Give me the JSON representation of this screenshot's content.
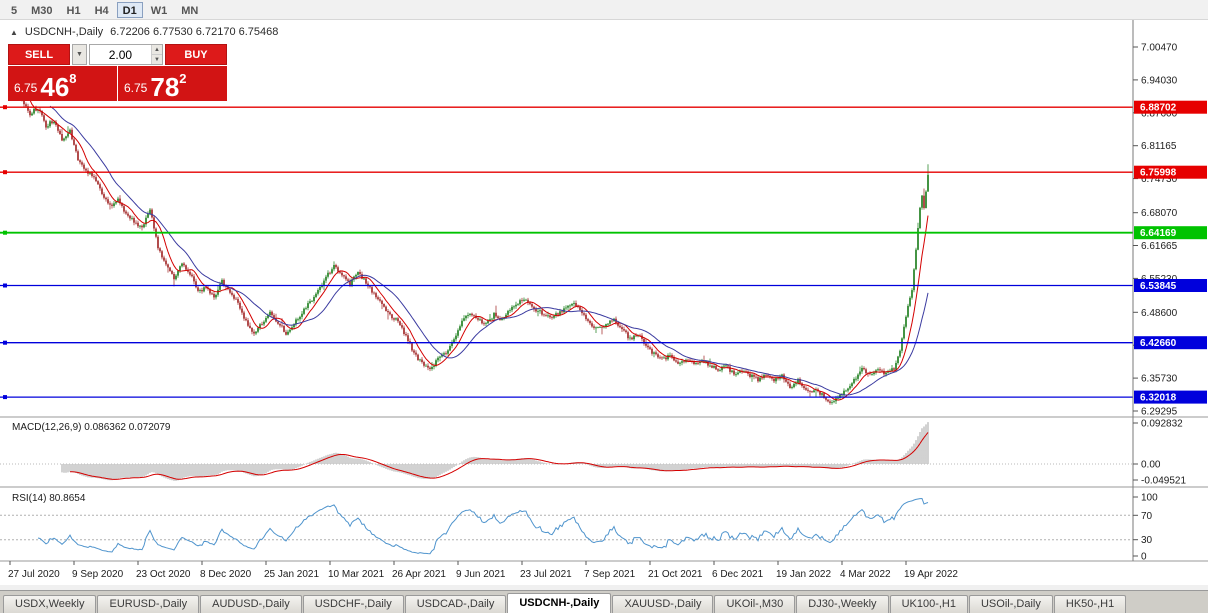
{
  "toolbar": {
    "buttons": [
      "5",
      "M30",
      "H1",
      "H4",
      "D1",
      "W1",
      "MN"
    ],
    "active": "D1"
  },
  "header": {
    "symbol": "USDCNH-,Daily",
    "ohlc": "6.72206 6.77530 6.72170 6.75468",
    "collapse_icon": "▲"
  },
  "trade_panel": {
    "sell_label": "SELL",
    "buy_label": "BUY",
    "volume": "2.00",
    "bid_small": "6.75",
    "bid_big": "46",
    "bid_sup": "8",
    "ask_small": "6.75",
    "ask_big": "78",
    "ask_sup": "2",
    "dropdown_icon": "▼",
    "spin_up_icon": "▲",
    "spin_down_icon": "▼"
  },
  "indicators": {
    "macd": {
      "name": "MACD",
      "params": "12,26,9",
      "full_label": "MACD(12,26,9) 0.086362 0.072079",
      "value_main": "0.086362",
      "value_signal": "0.072079",
      "y_ticks": [
        {
          "v": 0.092832,
          "label": "0.092832"
        },
        {
          "v": 0,
          "label": "0.00"
        },
        {
          "v": -0.049521,
          "label": "-0.049521"
        }
      ]
    },
    "rsi": {
      "name": "RSI",
      "params": "14",
      "full_label": "RSI(14) 80.8654",
      "value": "80.8654",
      "y_ticks": [
        {
          "v": 100,
          "label": "100"
        },
        {
          "v": 70,
          "label": "70"
        },
        {
          "v": 30,
          "label": "30"
        },
        {
          "v": 0,
          "label": "0"
        }
      ],
      "levels": [
        70,
        30
      ]
    }
  },
  "colors": {
    "up": "#167a16",
    "down": "#9e1f1f",
    "ma_fast": "#d40000",
    "ma_slow": "#3b3ba0",
    "macd_hist": "#c6c6c6",
    "macd_signal": "#d40000",
    "rsi": "#4f94cd",
    "level_red": "#e60000",
    "level_green": "#00c300",
    "level_blue": "#0000dc"
  },
  "chart_data": {
    "type": "candlestick",
    "symbol": "USDCNH-",
    "timeframe": "Daily",
    "last_candle": {
      "o": 6.72206,
      "h": 6.7753,
      "l": 6.7217,
      "c": 6.75468
    },
    "candle_count": 460,
    "y_range": {
      "min": 6.2871,
      "max": 7.0184
    },
    "y_ticks": [
      "7.00470",
      "6.94030",
      "6.87600",
      "6.81165",
      "6.74730",
      "6.68070",
      "6.61665",
      "6.55230",
      "6.48600",
      "6.42165",
      "6.35730",
      "6.29295"
    ],
    "x_labels": [
      {
        "day": 0,
        "text": "27 Jul 2020"
      },
      {
        "day": 32,
        "text": "9 Sep 2020"
      },
      {
        "day": 64,
        "text": "23 Oct 2020"
      },
      {
        "day": 96,
        "text": "8 Dec 2020"
      },
      {
        "day": 128,
        "text": "25 Jan 2021"
      },
      {
        "day": 160,
        "text": "10 Mar 2021"
      },
      {
        "day": 192,
        "text": "26 Apr 2021"
      },
      {
        "day": 224,
        "text": "9 Jun 2021"
      },
      {
        "day": 256,
        "text": "23 Jul 2021"
      },
      {
        "day": 288,
        "text": "7 Sep 2021"
      },
      {
        "day": 320,
        "text": "21 Oct 2021"
      },
      {
        "day": 352,
        "text": "6 Dec 2021"
      },
      {
        "day": 384,
        "text": "19 Jan 2022"
      },
      {
        "day": 416,
        "text": "4 Mar 2022"
      },
      {
        "day": 448,
        "text": "19 Apr 2022"
      }
    ],
    "levels": [
      {
        "price": 6.88702,
        "label": "6.88702",
        "color": "#e60000",
        "width": 1.3
      },
      {
        "price": 6.75998,
        "label": "6.75998",
        "color": "#e60000",
        "width": 1.3
      },
      {
        "price": 6.64169,
        "label": "6.64169",
        "color": "#00c300",
        "width": 1.8
      },
      {
        "price": 6.53845,
        "label": "6.53845",
        "color": "#0000dc",
        "width": 1.3
      },
      {
        "price": 6.4266,
        "label": "6.42660",
        "color": "#0000dc",
        "width": 1.3
      },
      {
        "price": 6.32018,
        "label": "6.32018",
        "color": "#0000dc",
        "width": 1.3
      }
    ],
    "moving_averages": [
      {
        "period": 8,
        "color_key": "ma_fast"
      },
      {
        "period": 21,
        "color_key": "ma_slow"
      }
    ],
    "anchors": [
      [
        0,
        6.918
      ],
      [
        3,
        6.938
      ],
      [
        6,
        6.902
      ],
      [
        10,
        6.874
      ],
      [
        14,
        6.886
      ],
      [
        18,
        6.85
      ],
      [
        22,
        6.862
      ],
      [
        26,
        6.824
      ],
      [
        30,
        6.84
      ],
      [
        34,
        6.784
      ],
      [
        38,
        6.762
      ],
      [
        42,
        6.75
      ],
      [
        46,
        6.72
      ],
      [
        50,
        6.694
      ],
      [
        54,
        6.706
      ],
      [
        58,
        6.676
      ],
      [
        62,
        6.664
      ],
      [
        66,
        6.65
      ],
      [
        70,
        6.686
      ],
      [
        74,
        6.614
      ],
      [
        78,
        6.576
      ],
      [
        82,
        6.552
      ],
      [
        86,
        6.584
      ],
      [
        90,
        6.562
      ],
      [
        94,
        6.526
      ],
      [
        98,
        6.534
      ],
      [
        102,
        6.514
      ],
      [
        106,
        6.546
      ],
      [
        110,
        6.524
      ],
      [
        114,
        6.504
      ],
      [
        118,
        6.468
      ],
      [
        122,
        6.446
      ],
      [
        126,
        6.464
      ],
      [
        130,
        6.486
      ],
      [
        134,
        6.466
      ],
      [
        138,
        6.446
      ],
      [
        142,
        6.464
      ],
      [
        146,
        6.486
      ],
      [
        150,
        6.506
      ],
      [
        154,
        6.526
      ],
      [
        158,
        6.556
      ],
      [
        162,
        6.576
      ],
      [
        166,
        6.556
      ],
      [
        170,
        6.542
      ],
      [
        174,
        6.564
      ],
      [
        178,
        6.544
      ],
      [
        182,
        6.522
      ],
      [
        186,
        6.502
      ],
      [
        190,
        6.48
      ],
      [
        194,
        6.468
      ],
      [
        198,
        6.44
      ],
      [
        202,
        6.406
      ],
      [
        206,
        6.386
      ],
      [
        210,
        6.374
      ],
      [
        214,
        6.394
      ],
      [
        218,
        6.406
      ],
      [
        222,
        6.436
      ],
      [
        226,
        6.466
      ],
      [
        230,
        6.486
      ],
      [
        234,
        6.472
      ],
      [
        238,
        6.462
      ],
      [
        242,
        6.482
      ],
      [
        246,
        6.472
      ],
      [
        250,
        6.492
      ],
      [
        254,
        6.504
      ],
      [
        258,
        6.512
      ],
      [
        262,
        6.494
      ],
      [
        266,
        6.484
      ],
      [
        270,
        6.474
      ],
      [
        274,
        6.484
      ],
      [
        278,
        6.494
      ],
      [
        282,
        6.502
      ],
      [
        286,
        6.484
      ],
      [
        290,
        6.462
      ],
      [
        294,
        6.454
      ],
      [
        298,
        6.464
      ],
      [
        302,
        6.472
      ],
      [
        306,
        6.454
      ],
      [
        310,
        6.434
      ],
      [
        314,
        6.444
      ],
      [
        318,
        6.422
      ],
      [
        322,
        6.404
      ],
      [
        326,
        6.394
      ],
      [
        330,
        6.402
      ],
      [
        334,
        6.384
      ],
      [
        338,
        6.394
      ],
      [
        342,
        6.384
      ],
      [
        346,
        6.394
      ],
      [
        350,
        6.382
      ],
      [
        354,
        6.374
      ],
      [
        358,
        6.382
      ],
      [
        362,
        6.364
      ],
      [
        366,
        6.374
      ],
      [
        370,
        6.362
      ],
      [
        374,
        6.354
      ],
      [
        378,
        6.364
      ],
      [
        382,
        6.354
      ],
      [
        386,
        6.362
      ],
      [
        390,
        6.336
      ],
      [
        394,
        6.354
      ],
      [
        398,
        6.332
      ],
      [
        402,
        6.334
      ],
      [
        406,
        6.324
      ],
      [
        410,
        6.308
      ],
      [
        414,
        6.318
      ],
      [
        418,
        6.334
      ],
      [
        422,
        6.354
      ],
      [
        426,
        6.374
      ],
      [
        430,
        6.364
      ],
      [
        434,
        6.374
      ],
      [
        438,
        6.364
      ],
      [
        442,
        6.376
      ],
      [
        445,
        6.41
      ],
      [
        447,
        6.458
      ],
      [
        449,
        6.498
      ],
      [
        451,
        6.53
      ],
      [
        453,
        6.608
      ],
      [
        454,
        6.65
      ],
      [
        455,
        6.69
      ],
      [
        456,
        6.714
      ],
      [
        457,
        6.69
      ],
      [
        458,
        6.72206
      ],
      [
        459,
        6.75468
      ]
    ]
  },
  "tabs": {
    "active_index": 5,
    "items": [
      "USDX,Weekly",
      "EURUSD-,Daily",
      "AUDUSD-,Daily",
      "USDCHF-,Daily",
      "USDCAD-,Daily",
      "USDCNH-,Daily",
      "XAUUSD-,Daily",
      "UKOil-,M30",
      "DJ30-,Weekly",
      "UK100-,H1",
      "USOil-,Daily",
      "HK50-,H1"
    ]
  }
}
